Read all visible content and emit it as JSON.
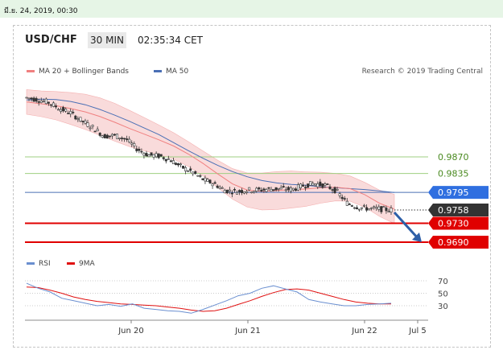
{
  "date_bar": "มี.ย. 24, 2019, 00:30",
  "header": {
    "pair": "USD/CHF",
    "timeframe": "30 MIN",
    "time": "02:35:34 CET"
  },
  "legend": {
    "ma20": "MA 20 + Bollinger Bands",
    "ma50": "MA 50",
    "credit": "Research © 2019 Trading Central"
  },
  "rsi_legend": {
    "rsi": "RSI",
    "ma9": "9MA"
  },
  "colors": {
    "candle": "#333333",
    "ma20": "#f08080",
    "band_fill": "#f8d5d5",
    "ma50": "#4a6fb5",
    "support": "#e00000",
    "resistance": "#9fcf80",
    "current": "#333333",
    "rsi": "#6a8fd0",
    "rsi_ma": "#e01010",
    "arrow": "#2e5fa8"
  },
  "chart_data": [
    {
      "type": "line",
      "title": "USD/CHF",
      "x_tick_labels": [
        "Jun 20",
        "Jun 21",
        "Jun 22",
        "Jul 5"
      ],
      "price_levels": [
        {
          "value": 0.987,
          "label": "0.9870",
          "kind": "resistance"
        },
        {
          "value": 0.9835,
          "label": "0.9835",
          "kind": "resistance"
        },
        {
          "value": 0.9795,
          "label": "0.9795",
          "kind": "ma50"
        },
        {
          "value": 0.9758,
          "label": "0.9758",
          "kind": "current"
        },
        {
          "value": 0.973,
          "label": "0.9730",
          "kind": "support"
        },
        {
          "value": 0.969,
          "label": "0.9690",
          "kind": "support"
        }
      ],
      "series": [
        {
          "name": "MA 20 + Bollinger Bands",
          "values": [
            0.9986,
            0.9982,
            0.9978,
            0.9972,
            0.9965,
            0.9955,
            0.9943,
            0.993,
            0.9918,
            0.9906,
            0.9893,
            0.9876,
            0.9856,
            0.9834,
            0.9813,
            0.98,
            0.9797,
            0.9799,
            0.9801,
            0.9802,
            0.9805,
            0.9806,
            0.9803,
            0.979,
            0.9772,
            0.976
          ]
        },
        {
          "name": "MA 50",
          "values": [
            0.999,
            0.9992,
            0.9991,
            0.9987,
            0.998,
            0.997,
            0.9958,
            0.9945,
            0.9931,
            0.9917,
            0.99,
            0.9883,
            0.9867,
            0.9852,
            0.9839,
            0.9828,
            0.982,
            0.9815,
            0.9812,
            0.981,
            0.9807,
            0.9805,
            0.9803,
            0.9801,
            0.9798,
            0.9795
          ]
        }
      ],
      "price_path": [
        0.9995,
        0.9991,
        0.9985,
        0.9972,
        0.9963,
        0.9946,
        0.9932,
        0.9914,
        0.9915,
        0.9908,
        0.9887,
        0.9874,
        0.9872,
        0.9864,
        0.9849,
        0.9838,
        0.9822,
        0.9813,
        0.9799,
        0.9797,
        0.98,
        0.98,
        0.9802,
        0.9803,
        0.9801,
        0.9809,
        0.9814,
        0.981,
        0.9799,
        0.9773,
        0.9764,
        0.9761,
        0.976,
        0.9758
      ],
      "forecast_arrow": {
        "from": 0.9758,
        "to": 0.969
      },
      "legend_position": "top-left"
    },
    {
      "type": "line",
      "y_tick_labels": [
        "70",
        "50",
        "30"
      ],
      "ylim": [
        15,
        80
      ],
      "series": [
        {
          "name": "RSI",
          "values": [
            66,
            58,
            52,
            42,
            38,
            34,
            30,
            32,
            29,
            33,
            26,
            24,
            22,
            21,
            18,
            24,
            31,
            38,
            46,
            50,
            58,
            62,
            57,
            52,
            40,
            36,
            33,
            30,
            30,
            32,
            33,
            34
          ]
        },
        {
          "name": "9MA",
          "values": [
            60,
            59,
            55,
            50,
            44,
            40,
            37,
            35,
            33,
            32,
            31,
            30,
            28,
            26,
            23,
            21,
            22,
            26,
            32,
            38,
            45,
            51,
            56,
            57,
            55,
            50,
            45,
            40,
            36,
            34,
            33,
            33
          ]
        }
      ],
      "legend_position": "top-left"
    }
  ]
}
